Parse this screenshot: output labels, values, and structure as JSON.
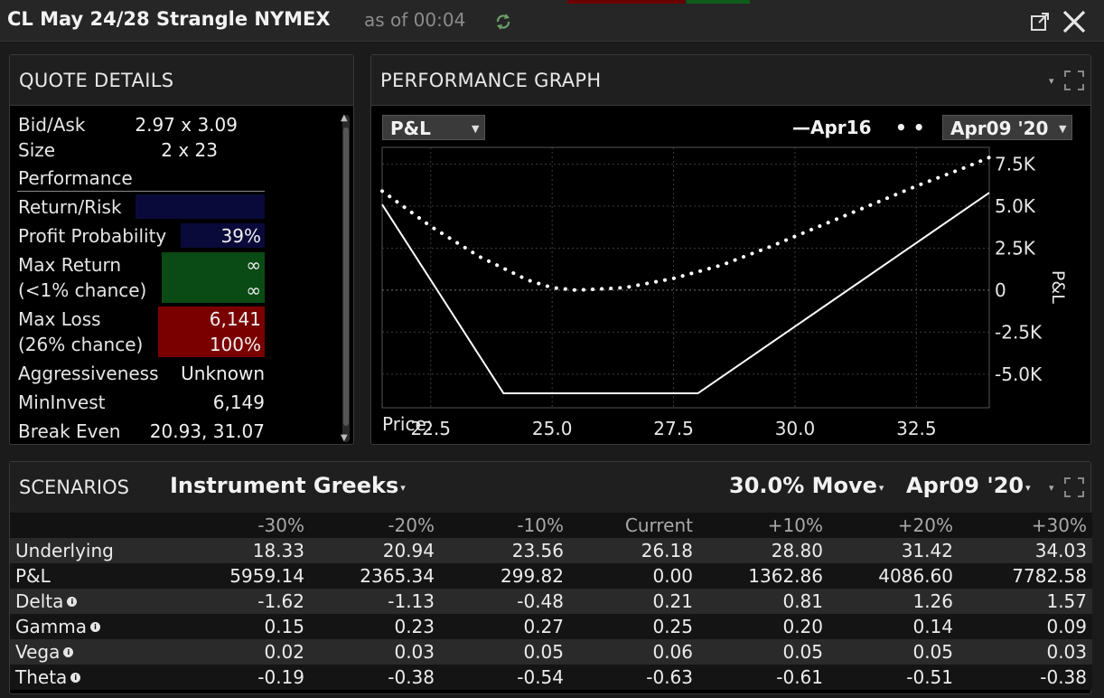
{
  "window": {
    "title": "CL May 24/28 Strangle NYMEX",
    "as_of": "as of 00:04",
    "icons": [
      "refresh-icon",
      "popout-icon",
      "close-icon"
    ]
  },
  "quote_details": {
    "title": "QUOTE DETAILS",
    "bid_ask_label": "Bid/Ask",
    "bid_ask_value": "2.97 x 3.09",
    "size_label": "Size",
    "size_value": "2 x 23",
    "performance_label": "Performance",
    "return_risk_label": "Return/Risk",
    "profit_probability_label": "Profit Probability",
    "profit_probability_value": "39%",
    "max_return_label": "Max Return",
    "max_return_chance": "(<1% chance)",
    "max_return_value": "∞",
    "max_return_pct": "∞",
    "max_loss_label": "Max Loss",
    "max_loss_chance": "(26% chance)",
    "max_loss_value": "6,141",
    "max_loss_pct": "100%",
    "aggressiveness_label": "Aggressiveness",
    "aggressiveness_value": "Unknown",
    "min_invest_label": "MinInvest",
    "min_invest_value": "6,149",
    "break_even_label": "Break Even",
    "break_even_value": "20.93, 31.07",
    "colors": {
      "return_risk": "#0a0a3a",
      "profit_prob": "#0a0a3a",
      "max_return": "#0a4a14",
      "max_loss": "#7a0000"
    }
  },
  "performance_graph": {
    "title": "PERFORMANCE GRAPH",
    "metric_dropdown": "P&L",
    "legend_solid": "Apr16",
    "date_dropdown": "Apr09 '20",
    "price_label": "Price:"
  },
  "chart_data": {
    "type": "line",
    "ylabel": "P&L",
    "xlim": [
      21.5,
      34.0
    ],
    "ylim": [
      -7000,
      8500
    ],
    "x_ticks": [
      22.5,
      25.0,
      27.5,
      30.0,
      32.5
    ],
    "x_tick_labels": [
      "22.5",
      "25.0",
      "27.5",
      "30.0",
      "32.5"
    ],
    "y_ticks": [
      7500,
      5000,
      2500,
      0,
      -2500,
      -5000
    ],
    "y_tick_labels": [
      "7.5K",
      "5.0K",
      "2.5K",
      "0",
      "-2.5K",
      "-5.0K"
    ],
    "series": [
      {
        "name": "Apr16",
        "style": "solid",
        "x": [
          21.5,
          24.0,
          28.0,
          34.0
        ],
        "y": [
          5100,
          -6141,
          -6141,
          5800
        ]
      },
      {
        "style": "dotted",
        "x": [
          21.5,
          22.5,
          23.5,
          24.5,
          25.0,
          25.5,
          26.5,
          27.5,
          28.5,
          29.5,
          30.5,
          31.5,
          32.5,
          33.5,
          34.0
        ],
        "y": [
          5900,
          3800,
          2000,
          600,
          150,
          0,
          150,
          700,
          1500,
          2600,
          3800,
          5000,
          6200,
          7300,
          7900
        ]
      }
    ],
    "grid": true
  },
  "scenarios": {
    "title": "SCENARIOS",
    "mode_dropdown": "Instrument Greeks",
    "move_dropdown": "30.0% Move",
    "date_dropdown": "Apr09 '20",
    "columns": [
      "",
      "-30%",
      "-20%",
      "-10%",
      "Current",
      "+10%",
      "+20%",
      "+30%"
    ],
    "rows": [
      {
        "label": "Underlying",
        "info": false,
        "values": [
          "18.33",
          "20.94",
          "23.56",
          "26.18",
          "28.80",
          "31.42",
          "34.03"
        ]
      },
      {
        "label": "P&L",
        "info": false,
        "values": [
          "5959.14",
          "2365.34",
          "299.82",
          "0.00",
          "1362.86",
          "4086.60",
          "7782.58"
        ]
      },
      {
        "label": "Delta",
        "info": true,
        "values": [
          "-1.62",
          "-1.13",
          "-0.48",
          "0.21",
          "0.81",
          "1.26",
          "1.57"
        ]
      },
      {
        "label": "Gamma",
        "info": true,
        "values": [
          "0.15",
          "0.23",
          "0.27",
          "0.25",
          "0.20",
          "0.14",
          "0.09"
        ]
      },
      {
        "label": "Vega",
        "info": true,
        "values": [
          "0.02",
          "0.03",
          "0.05",
          "0.06",
          "0.05",
          "0.05",
          "0.03"
        ]
      },
      {
        "label": "Theta",
        "info": true,
        "values": [
          "-0.19",
          "-0.38",
          "-0.54",
          "-0.63",
          "-0.61",
          "-0.51",
          "-0.38"
        ]
      }
    ]
  }
}
